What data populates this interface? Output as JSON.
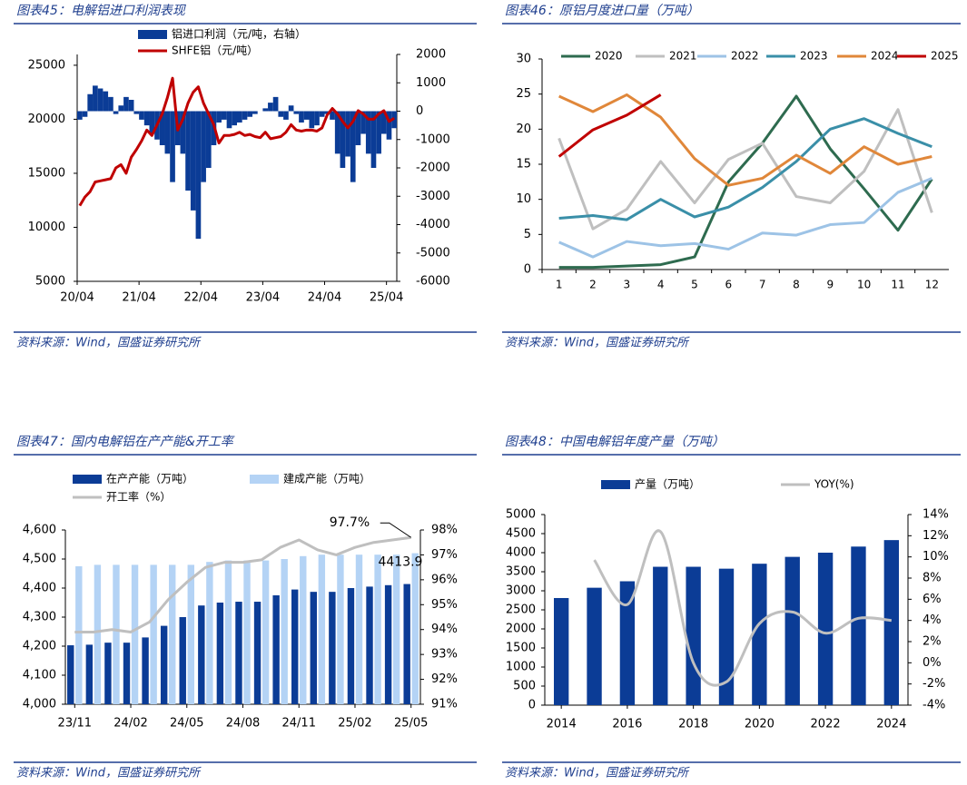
{
  "chart_data": [
    {
      "type": "combo",
      "title": "图表45：电解铝进口利润表现",
      "source": "资料来源：Wind，国盛证券研究所",
      "categories": [
        "20/04",
        "20/05",
        "20/06",
        "20/07",
        "20/08",
        "20/09",
        "20/10",
        "20/11",
        "20/12",
        "21/01",
        "21/02",
        "21/03",
        "21/04",
        "21/05",
        "21/06",
        "21/07",
        "21/08",
        "21/09",
        "21/10",
        "21/11",
        "21/12",
        "22/01",
        "22/02",
        "22/03",
        "22/04",
        "22/05",
        "22/06",
        "22/07",
        "22/08",
        "22/09",
        "22/10",
        "22/11",
        "22/12",
        "23/01",
        "23/02",
        "23/03",
        "23/04",
        "23/05",
        "23/06",
        "23/07",
        "23/08",
        "23/09",
        "23/10",
        "23/11",
        "23/12",
        "24/01",
        "24/02",
        "24/03",
        "24/04",
        "24/05",
        "24/06",
        "24/07",
        "24/08",
        "24/09",
        "24/10",
        "24/11",
        "24/12",
        "25/01",
        "25/02",
        "25/03",
        "25/04",
        "25/05"
      ],
      "xticks": [
        "20/04",
        "21/04",
        "22/04",
        "23/04",
        "24/04",
        "25/04"
      ],
      "ylim": [
        5000,
        26000
      ],
      "yticks": [
        5000,
        10000,
        15000,
        20000,
        25000
      ],
      "y2lim": [
        -6000,
        2000
      ],
      "y2ticks": [
        -6000,
        -5000,
        -4000,
        -3000,
        -2000,
        -1000,
        0,
        1000,
        2000
      ],
      "grid": false,
      "smooth": false,
      "series": [
        {
          "name": "铝进口利润（元/吨，右轴）",
          "type": "bar",
          "axis": "y2",
          "color": "#0b3c96",
          "values": [
            -300,
            -200,
            600,
            900,
            800,
            700,
            500,
            -100,
            200,
            500,
            400,
            -100,
            -300,
            -500,
            -800,
            -1000,
            -1200,
            -1500,
            -2500,
            -1200,
            -1500,
            -2800,
            -3500,
            -4500,
            -2500,
            -2000,
            -1200,
            -400,
            -300,
            -600,
            -500,
            -400,
            -300,
            -200,
            -100,
            0,
            100,
            300,
            500,
            -200,
            -300,
            200,
            -100,
            -400,
            -300,
            -600,
            -500,
            -200,
            -100,
            -300,
            -1500,
            -2000,
            -1600,
            -2500,
            -1200,
            -800,
            -1500,
            -2000,
            -1500,
            -800,
            -1000,
            -600
          ]
        },
        {
          "name": "SHFE铝（元/吨）",
          "type": "line",
          "color": "#c00000",
          "values": [
            12000,
            12800,
            13300,
            14200,
            14300,
            14400,
            14500,
            15500,
            15800,
            15000,
            16500,
            17200,
            18000,
            19000,
            18500,
            19500,
            20500,
            22000,
            23800,
            19000,
            20000,
            21500,
            22500,
            23000,
            21500,
            20500,
            19500,
            17800,
            18500,
            18500,
            18600,
            18800,
            18500,
            18600,
            18400,
            18300,
            18800,
            18200,
            18300,
            18400,
            18800,
            19500,
            19000,
            18900,
            19000,
            19000,
            18900,
            19200,
            20400,
            21000,
            20500,
            19800,
            19200,
            19800,
            20800,
            20500,
            20000,
            20000,
            20500,
            20800,
            19800,
            20100
          ]
        }
      ]
    },
    {
      "type": "line",
      "title": "图表46：原铝月度进口量（万吨）",
      "source": "资料来源：Wind，国盛证券研究所",
      "categories": [
        "1",
        "2",
        "3",
        "4",
        "5",
        "6",
        "7",
        "8",
        "9",
        "10",
        "11",
        "12"
      ],
      "ylim": [
        0,
        30
      ],
      "yticks": [
        0,
        5,
        10,
        15,
        20,
        25,
        30
      ],
      "grid": false,
      "smooth": false,
      "series": [
        {
          "name": "2020",
          "type": "line",
          "color": "#2e6b4f",
          "values": [
            0.3,
            0.3,
            0.5,
            0.7,
            1.8,
            12.5,
            18,
            24.7,
            17.2,
            11.5,
            5.6,
            12.9
          ]
        },
        {
          "name": "2021",
          "type": "line",
          "color": "#bfbfbf",
          "values": [
            18.7,
            5.8,
            8.6,
            15.4,
            9.5,
            15.7,
            18,
            10.4,
            9.5,
            14,
            22.8,
            8.1
          ]
        },
        {
          "name": "2022",
          "type": "line",
          "color": "#9dc3e6",
          "values": [
            3.9,
            1.8,
            4,
            3.4,
            3.7,
            2.9,
            5.2,
            4.9,
            6.4,
            6.7,
            11,
            13
          ]
        },
        {
          "name": "2023",
          "type": "line",
          "color": "#3a8fa8",
          "values": [
            7.3,
            7.7,
            7.1,
            10,
            7.5,
            8.9,
            11.7,
            15.4,
            20,
            21.5,
            19.4,
            17.5
          ]
        },
        {
          "name": "2024",
          "type": "line",
          "color": "#e0873a",
          "values": [
            24.7,
            22.5,
            24.9,
            21.7,
            15.8,
            12,
            13,
            16.3,
            13.7,
            17.5,
            15,
            16.1
          ]
        },
        {
          "name": "2025",
          "type": "line",
          "color": "#c00000",
          "values": [
            16.1,
            19.9,
            22,
            24.9,
            null,
            null,
            null,
            null,
            null,
            null,
            null,
            null
          ]
        }
      ]
    },
    {
      "type": "combo",
      "title": "图表47：国内电解铝在产产能&开工率",
      "source": "资料来源：Wind，国盛证券研究所",
      "categories": [
        "23/11",
        "23/12",
        "24/01",
        "24/02",
        "24/03",
        "24/04",
        "24/05",
        "24/06",
        "24/07",
        "24/08",
        "24/09",
        "24/10",
        "24/11",
        "24/12",
        "25/01",
        "25/02",
        "25/03",
        "25/04",
        "25/05"
      ],
      "xticks": [
        "23/11",
        "24/02",
        "24/05",
        "24/08",
        "24/11",
        "25/02",
        "25/05"
      ],
      "ylim": [
        4000,
        4600
      ],
      "yticks": [
        {
          "value": 4000,
          "label": "4,000"
        },
        {
          "value": 4100,
          "label": "4,100"
        },
        {
          "value": 4200,
          "label": "4,200"
        },
        {
          "value": 4300,
          "label": "4,300"
        },
        {
          "value": 4400,
          "label": "4,400"
        },
        {
          "value": 4500,
          "label": "4,500"
        },
        {
          "value": 4600,
          "label": "4,600"
        }
      ],
      "y2lim": [
        91,
        98
      ],
      "y2ticks": [
        {
          "value": 91,
          "label": "91%"
        },
        {
          "value": 92,
          "label": "92%"
        },
        {
          "value": 93,
          "label": "93%"
        },
        {
          "value": 94,
          "label": "94%"
        },
        {
          "value": 95,
          "label": "95%"
        },
        {
          "value": 96,
          "label": "96%"
        },
        {
          "value": 97,
          "label": "97%"
        },
        {
          "value": 98,
          "label": "98%"
        }
      ],
      "grid": false,
      "smooth": false,
      "series": [
        {
          "name": "在产产能（万吨）",
          "type": "bar",
          "color": "#0b3c96",
          "values": [
            4203,
            4205,
            4212,
            4212,
            4230,
            4270,
            4300,
            4340,
            4350,
            4353,
            4353,
            4375,
            4395,
            4387,
            4387,
            4400,
            4405,
            4410,
            4413.9
          ],
          "value_labels": [
            null,
            null,
            null,
            null,
            null,
            null,
            null,
            null,
            null,
            null,
            null,
            null,
            null,
            null,
            null,
            null,
            null,
            null,
            "4413.9"
          ]
        },
        {
          "name": "建成产能（万吨）",
          "type": "bar",
          "color": "#b4d3f5",
          "values": [
            4475,
            4480,
            4480,
            4480,
            4480,
            4480,
            4480,
            4490,
            4495,
            4495,
            4495,
            4500,
            4510,
            4515,
            4515,
            4515,
            4515,
            4515,
            4520
          ]
        },
        {
          "name": "开工率（%）",
          "type": "line",
          "axis": "y2",
          "color": "#bfbfbf",
          "values": [
            93.9,
            93.9,
            94.0,
            93.9,
            94.3,
            95.2,
            95.9,
            96.5,
            96.7,
            96.7,
            96.8,
            97.3,
            97.6,
            97.2,
            97.0,
            97.3,
            97.5,
            97.6,
            97.7
          ],
          "value_labels": [
            null,
            null,
            null,
            null,
            null,
            null,
            null,
            null,
            null,
            null,
            null,
            null,
            null,
            null,
            null,
            null,
            null,
            null,
            "97.7%"
          ]
        }
      ]
    },
    {
      "type": "combo",
      "title": "图表48：中国电解铝年度产量（万吨）",
      "source": "资料来源：Wind，国盛证券研究所",
      "categories": [
        "2014",
        "2015",
        "2016",
        "2017",
        "2018",
        "2019",
        "2020",
        "2021",
        "2022",
        "2023",
        "2024"
      ],
      "xticks": [
        "2014",
        "2016",
        "2018",
        "2020",
        "2022",
        "2024"
      ],
      "ylim": [
        0,
        5000
      ],
      "yticks": [
        0,
        500,
        1000,
        1500,
        2000,
        2500,
        3000,
        3500,
        4000,
        4500,
        5000
      ],
      "y2lim": [
        -4,
        14
      ],
      "y2ticks": [
        {
          "value": -4,
          "label": "-4%"
        },
        {
          "value": -2,
          "label": "-2%"
        },
        {
          "value": 0,
          "label": "0%"
        },
        {
          "value": 2,
          "label": "2%"
        },
        {
          "value": 4,
          "label": "4%"
        },
        {
          "value": 6,
          "label": "6%"
        },
        {
          "value": 8,
          "label": "8%"
        },
        {
          "value": 10,
          "label": "10%"
        },
        {
          "value": 12,
          "label": "12%"
        },
        {
          "value": 14,
          "label": "14%"
        }
      ],
      "grid": false,
      "smooth": true,
      "series": [
        {
          "name": "产量（万吨）",
          "type": "bar",
          "color": "#0b3c96",
          "values": [
            2810,
            3080,
            3250,
            3630,
            3630,
            3580,
            3710,
            3890,
            4000,
            4160,
            4330
          ]
        },
        {
          "name": "YOY(%)",
          "type": "line",
          "axis": "y2",
          "color": "#bfbfbf",
          "values": [
            null,
            9.7,
            5.5,
            12.4,
            0,
            -1.8,
            3.7,
            4.8,
            2.8,
            4.2,
            4.0
          ]
        }
      ]
    }
  ]
}
